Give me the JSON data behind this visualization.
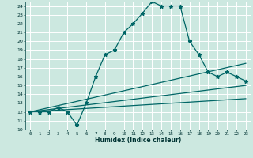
{
  "title": "",
  "xlabel": "Humidex (Indice chaleur)",
  "bg_color": "#cce8e0",
  "grid_color": "#ffffff",
  "line_color": "#006666",
  "xlim": [
    -0.5,
    23.5
  ],
  "ylim": [
    10,
    24.5
  ],
  "xticks": [
    0,
    1,
    2,
    3,
    4,
    5,
    6,
    7,
    8,
    9,
    10,
    11,
    12,
    13,
    14,
    15,
    16,
    17,
    18,
    19,
    20,
    21,
    22,
    23
  ],
  "yticks": [
    10,
    11,
    12,
    13,
    14,
    15,
    16,
    17,
    18,
    19,
    20,
    21,
    22,
    23,
    24
  ],
  "series1_x": [
    0,
    1,
    2,
    3,
    4,
    5,
    6,
    7,
    8,
    9,
    10,
    11,
    12,
    13,
    14,
    15,
    16,
    17,
    18,
    19,
    20,
    21,
    22,
    23
  ],
  "series1_y": [
    12,
    12,
    12,
    12.5,
    12,
    10.5,
    13,
    16,
    18.5,
    19,
    21,
    22,
    23.2,
    24.5,
    24,
    24,
    24,
    20,
    18.5,
    16.5,
    16,
    16.5,
    16,
    15.5
  ],
  "series2_x": [
    0,
    23
  ],
  "series2_y": [
    12,
    17.5
  ],
  "series3_x": [
    0,
    23
  ],
  "series3_y": [
    12,
    15
  ],
  "series4_x": [
    0,
    23
  ],
  "series4_y": [
    12,
    13.5
  ],
  "marker": "*",
  "markersize": 3.5,
  "linewidth": 0.9
}
